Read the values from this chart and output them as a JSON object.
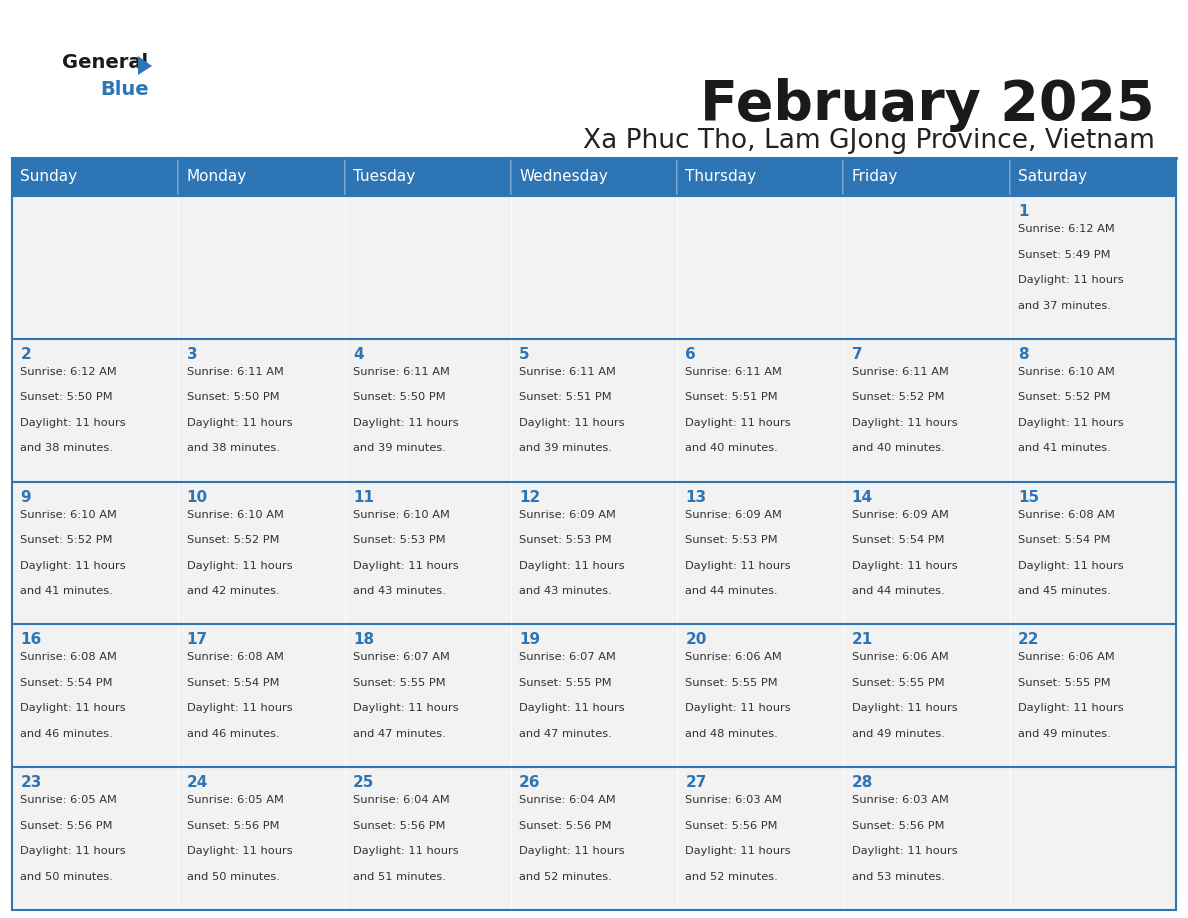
{
  "title": "February 2025",
  "subtitle": "Xa Phuc Tho, Lam GJong Province, Vietnam",
  "header_bg": "#2E75B6",
  "header_text_color": "#FFFFFF",
  "cell_bg_light": "#F2F2F2",
  "cell_bg_white": "#FFFFFF",
  "day_number_color": "#2E75B6",
  "cell_text_color": "#333333",
  "border_color": "#2E75B6",
  "days_of_week": [
    "Sunday",
    "Monday",
    "Tuesday",
    "Wednesday",
    "Thursday",
    "Friday",
    "Saturday"
  ],
  "calendar_data": [
    [
      null,
      null,
      null,
      null,
      null,
      null,
      {
        "day": "1",
        "sunrise": "6:12 AM",
        "sunset": "5:49 PM",
        "daylight_line1": "Daylight: 11 hours",
        "daylight_line2": "and 37 minutes."
      }
    ],
    [
      {
        "day": "2",
        "sunrise": "6:12 AM",
        "sunset": "5:50 PM",
        "daylight_line1": "Daylight: 11 hours",
        "daylight_line2": "and 38 minutes."
      },
      {
        "day": "3",
        "sunrise": "6:11 AM",
        "sunset": "5:50 PM",
        "daylight_line1": "Daylight: 11 hours",
        "daylight_line2": "and 38 minutes."
      },
      {
        "day": "4",
        "sunrise": "6:11 AM",
        "sunset": "5:50 PM",
        "daylight_line1": "Daylight: 11 hours",
        "daylight_line2": "and 39 minutes."
      },
      {
        "day": "5",
        "sunrise": "6:11 AM",
        "sunset": "5:51 PM",
        "daylight_line1": "Daylight: 11 hours",
        "daylight_line2": "and 39 minutes."
      },
      {
        "day": "6",
        "sunrise": "6:11 AM",
        "sunset": "5:51 PM",
        "daylight_line1": "Daylight: 11 hours",
        "daylight_line2": "and 40 minutes."
      },
      {
        "day": "7",
        "sunrise": "6:11 AM",
        "sunset": "5:52 PM",
        "daylight_line1": "Daylight: 11 hours",
        "daylight_line2": "and 40 minutes."
      },
      {
        "day": "8",
        "sunrise": "6:10 AM",
        "sunset": "5:52 PM",
        "daylight_line1": "Daylight: 11 hours",
        "daylight_line2": "and 41 minutes."
      }
    ],
    [
      {
        "day": "9",
        "sunrise": "6:10 AM",
        "sunset": "5:52 PM",
        "daylight_line1": "Daylight: 11 hours",
        "daylight_line2": "and 41 minutes."
      },
      {
        "day": "10",
        "sunrise": "6:10 AM",
        "sunset": "5:52 PM",
        "daylight_line1": "Daylight: 11 hours",
        "daylight_line2": "and 42 minutes."
      },
      {
        "day": "11",
        "sunrise": "6:10 AM",
        "sunset": "5:53 PM",
        "daylight_line1": "Daylight: 11 hours",
        "daylight_line2": "and 43 minutes."
      },
      {
        "day": "12",
        "sunrise": "6:09 AM",
        "sunset": "5:53 PM",
        "daylight_line1": "Daylight: 11 hours",
        "daylight_line2": "and 43 minutes."
      },
      {
        "day": "13",
        "sunrise": "6:09 AM",
        "sunset": "5:53 PM",
        "daylight_line1": "Daylight: 11 hours",
        "daylight_line2": "and 44 minutes."
      },
      {
        "day": "14",
        "sunrise": "6:09 AM",
        "sunset": "5:54 PM",
        "daylight_line1": "Daylight: 11 hours",
        "daylight_line2": "and 44 minutes."
      },
      {
        "day": "15",
        "sunrise": "6:08 AM",
        "sunset": "5:54 PM",
        "daylight_line1": "Daylight: 11 hours",
        "daylight_line2": "and 45 minutes."
      }
    ],
    [
      {
        "day": "16",
        "sunrise": "6:08 AM",
        "sunset": "5:54 PM",
        "daylight_line1": "Daylight: 11 hours",
        "daylight_line2": "and 46 minutes."
      },
      {
        "day": "17",
        "sunrise": "6:08 AM",
        "sunset": "5:54 PM",
        "daylight_line1": "Daylight: 11 hours",
        "daylight_line2": "and 46 minutes."
      },
      {
        "day": "18",
        "sunrise": "6:07 AM",
        "sunset": "5:55 PM",
        "daylight_line1": "Daylight: 11 hours",
        "daylight_line2": "and 47 minutes."
      },
      {
        "day": "19",
        "sunrise": "6:07 AM",
        "sunset": "5:55 PM",
        "daylight_line1": "Daylight: 11 hours",
        "daylight_line2": "and 47 minutes."
      },
      {
        "day": "20",
        "sunrise": "6:06 AM",
        "sunset": "5:55 PM",
        "daylight_line1": "Daylight: 11 hours",
        "daylight_line2": "and 48 minutes."
      },
      {
        "day": "21",
        "sunrise": "6:06 AM",
        "sunset": "5:55 PM",
        "daylight_line1": "Daylight: 11 hours",
        "daylight_line2": "and 49 minutes."
      },
      {
        "day": "22",
        "sunrise": "6:06 AM",
        "sunset": "5:55 PM",
        "daylight_line1": "Daylight: 11 hours",
        "daylight_line2": "and 49 minutes."
      }
    ],
    [
      {
        "day": "23",
        "sunrise": "6:05 AM",
        "sunset": "5:56 PM",
        "daylight_line1": "Daylight: 11 hours",
        "daylight_line2": "and 50 minutes."
      },
      {
        "day": "24",
        "sunrise": "6:05 AM",
        "sunset": "5:56 PM",
        "daylight_line1": "Daylight: 11 hours",
        "daylight_line2": "and 50 minutes."
      },
      {
        "day": "25",
        "sunrise": "6:04 AM",
        "sunset": "5:56 PM",
        "daylight_line1": "Daylight: 11 hours",
        "daylight_line2": "and 51 minutes."
      },
      {
        "day": "26",
        "sunrise": "6:04 AM",
        "sunset": "5:56 PM",
        "daylight_line1": "Daylight: 11 hours",
        "daylight_line2": "and 52 minutes."
      },
      {
        "day": "27",
        "sunrise": "6:03 AM",
        "sunset": "5:56 PM",
        "daylight_line1": "Daylight: 11 hours",
        "daylight_line2": "and 52 minutes."
      },
      {
        "day": "28",
        "sunrise": "6:03 AM",
        "sunset": "5:56 PM",
        "daylight_line1": "Daylight: 11 hours",
        "daylight_line2": "and 53 minutes."
      },
      null
    ]
  ]
}
